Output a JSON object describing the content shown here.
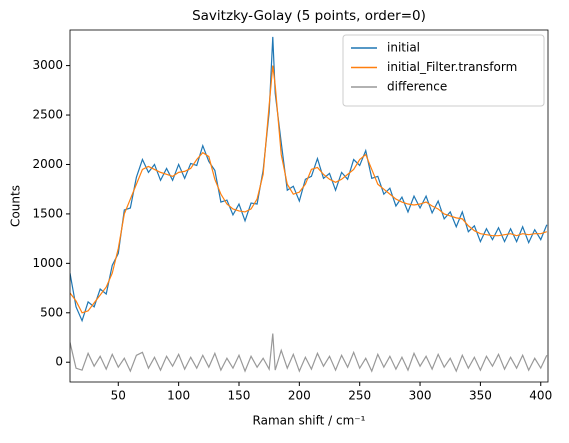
{
  "chart_data": {
    "type": "line",
    "title": "Savitzky-Golay (5 points, order=0)",
    "x_label": "Raman shift / cm⁻¹",
    "y_label": "Counts",
    "x": [
      10,
      15,
      20,
      25,
      30,
      35,
      40,
      45,
      50,
      55,
      60,
      65,
      70,
      75,
      80,
      85,
      90,
      95,
      100,
      105,
      110,
      115,
      120,
      125,
      130,
      135,
      140,
      145,
      150,
      155,
      160,
      165,
      170,
      175,
      178,
      180,
      185,
      190,
      195,
      200,
      205,
      210,
      215,
      220,
      225,
      230,
      235,
      240,
      245,
      250,
      255,
      260,
      265,
      270,
      275,
      280,
      285,
      290,
      295,
      300,
      305,
      310,
      315,
      320,
      325,
      330,
      335,
      340,
      345,
      350,
      355,
      360,
      365,
      370,
      375,
      380,
      385,
      390,
      395,
      400,
      405
    ],
    "series": [
      {
        "name": "initial",
        "color": "#1f77b4",
        "values": [
          900,
          560,
          420,
          610,
          560,
          740,
          690,
          980,
          1100,
          1540,
          1560,
          1870,
          2050,
          1920,
          2000,
          1840,
          1960,
          1840,
          2000,
          1860,
          2010,
          1990,
          2190,
          2030,
          1940,
          1620,
          1640,
          1490,
          1600,
          1430,
          1610,
          1600,
          1940,
          2530,
          3290,
          2720,
          2220,
          1740,
          1780,
          1630,
          1850,
          1880,
          2060,
          1860,
          1910,
          1740,
          1920,
          1850,
          2050,
          1990,
          2140,
          1860,
          1880,
          1700,
          1760,
          1580,
          1670,
          1520,
          1680,
          1560,
          1680,
          1510,
          1630,
          1450,
          1520,
          1370,
          1520,
          1320,
          1380,
          1220,
          1350,
          1240,
          1360,
          1220,
          1350,
          1220,
          1370,
          1210,
          1340,
          1240,
          1390
        ]
      },
      {
        "name": "initial_Filter.transform",
        "color": "#ff7f0e",
        "values": [
          700,
          620,
          500,
          520,
          600,
          680,
          760,
          900,
          1150,
          1500,
          1650,
          1800,
          1950,
          1980,
          1950,
          1920,
          1900,
          1880,
          1920,
          1930,
          1960,
          2050,
          2120,
          2080,
          1850,
          1700,
          1600,
          1550,
          1530,
          1520,
          1550,
          1650,
          1900,
          2600,
          3000,
          2800,
          2100,
          1800,
          1700,
          1720,
          1800,
          1950,
          1970,
          1900,
          1850,
          1820,
          1850,
          1900,
          1950,
          2050,
          2100,
          1950,
          1800,
          1750,
          1700,
          1650,
          1620,
          1600,
          1590,
          1600,
          1620,
          1580,
          1550,
          1500,
          1480,
          1460,
          1450,
          1380,
          1330,
          1300,
          1290,
          1280,
          1280,
          1290,
          1300,
          1280,
          1300,
          1290,
          1300,
          1300,
          1320
        ]
      },
      {
        "name": "difference",
        "color": "#999999",
        "values": [
          200,
          -60,
          -80,
          90,
          -40,
          60,
          -70,
          80,
          -50,
          40,
          -90,
          70,
          100,
          -60,
          50,
          -80,
          60,
          -40,
          80,
          -70,
          50,
          -60,
          70,
          -50,
          90,
          -80,
          40,
          -60,
          70,
          -90,
          60,
          -50,
          40,
          -70,
          290,
          -80,
          120,
          -60,
          80,
          -90,
          50,
          -70,
          90,
          -40,
          60,
          -80,
          70,
          -50,
          100,
          -60,
          40,
          -90,
          80,
          -50,
          60,
          -70,
          50,
          -80,
          90,
          -40,
          60,
          -70,
          80,
          -50,
          40,
          -90,
          70,
          -60,
          50,
          -80,
          60,
          -40,
          80,
          -70,
          50,
          -60,
          70,
          -80,
          40,
          -60,
          70
        ]
      }
    ],
    "xlim": [
      10,
      406
    ],
    "xticks": [
      50,
      100,
      150,
      200,
      250,
      300,
      350,
      400
    ],
    "ylim": [
      -200,
      3360
    ],
    "yticks": [
      0,
      500,
      1000,
      1500,
      2000,
      2500,
      3000
    ],
    "legend": "upper right"
  }
}
